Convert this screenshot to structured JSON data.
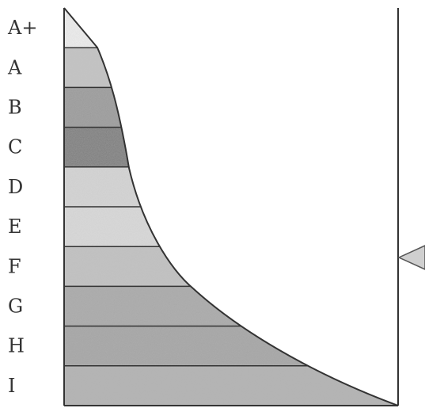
{
  "grades": [
    "A+",
    "A",
    "B",
    "C",
    "D",
    "E",
    "F",
    "G",
    "H",
    "I"
  ],
  "band_colors": [
    "#efefef",
    "#c4c4c4",
    "#9a9a9a",
    "#7c7c7c",
    "#d6d6d6",
    "#dadada",
    "#c2c2c2",
    "#a9a9a9",
    "#a4a4a4",
    "#b2b2b2"
  ],
  "outline_color": "#333333",
  "marker": {
    "shape": "triangle",
    "color": "#cfcfcf",
    "points_to": "F"
  }
}
